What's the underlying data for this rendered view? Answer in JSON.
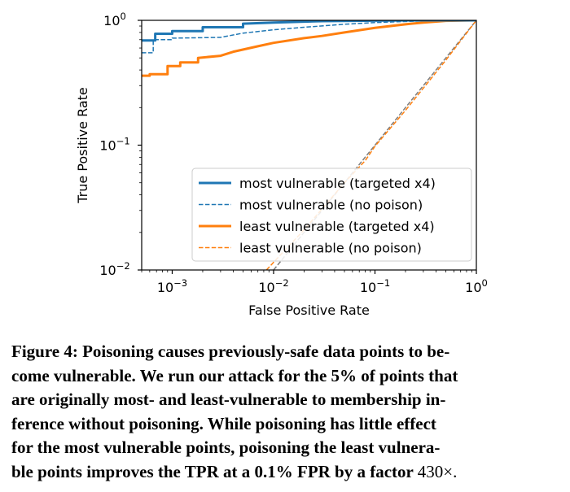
{
  "chart_data": {
    "type": "line",
    "xscale": "log",
    "yscale": "log",
    "xlim": [
      0.0005,
      1
    ],
    "ylim": [
      0.01,
      1
    ],
    "xlabel": "False Positive Rate",
    "ylabel": "True Positive Rate",
    "xticks": [
      {
        "value": 0.001,
        "base": "10",
        "exp": "−3"
      },
      {
        "value": 0.01,
        "base": "10",
        "exp": "−2"
      },
      {
        "value": 0.1,
        "base": "10",
        "exp": "−1"
      },
      {
        "value": 1,
        "base": "10",
        "exp": "0"
      }
    ],
    "yticks": [
      {
        "value": 0.01,
        "base": "10",
        "exp": "−2"
      },
      {
        "value": 0.1,
        "base": "10",
        "exp": "−1"
      },
      {
        "value": 1,
        "base": "10",
        "exp": "0"
      }
    ],
    "legend_position": "lower-right",
    "series": [
      {
        "name": "most vulnerable (targeted x4)",
        "color": "#1f77b4",
        "style": "solid",
        "points": [
          [
            0.0005,
            0.69
          ],
          [
            0.00068,
            0.69
          ],
          [
            0.00068,
            0.78
          ],
          [
            0.001,
            0.78
          ],
          [
            0.001,
            0.82
          ],
          [
            0.002,
            0.82
          ],
          [
            0.002,
            0.88
          ],
          [
            0.005,
            0.88
          ],
          [
            0.005,
            0.94
          ],
          [
            0.01,
            0.96
          ],
          [
            0.03,
            0.985
          ],
          [
            0.1,
            0.995
          ],
          [
            0.3,
            1.0
          ],
          [
            1,
            1.0
          ]
        ]
      },
      {
        "name": "most vulnerable (no poison)",
        "color": "#1f77b4",
        "style": "dashed",
        "points": [
          [
            0.0005,
            0.55
          ],
          [
            0.00065,
            0.55
          ],
          [
            0.00065,
            0.7
          ],
          [
            0.001,
            0.7
          ],
          [
            0.001,
            0.72
          ],
          [
            0.003,
            0.73
          ],
          [
            0.005,
            0.79
          ],
          [
            0.01,
            0.84
          ],
          [
            0.02,
            0.88
          ],
          [
            0.05,
            0.93
          ],
          [
            0.1,
            0.96
          ],
          [
            0.3,
            0.99
          ],
          [
            1,
            1.0
          ]
        ]
      },
      {
        "name": "least vulnerable (targeted x4)",
        "color": "#ff7f0e",
        "style": "solid",
        "points": [
          [
            0.0005,
            0.36
          ],
          [
            0.0006,
            0.36
          ],
          [
            0.0006,
            0.37
          ],
          [
            0.0009,
            0.37
          ],
          [
            0.0009,
            0.43
          ],
          [
            0.0012,
            0.43
          ],
          [
            0.0012,
            0.46
          ],
          [
            0.0018,
            0.46
          ],
          [
            0.0018,
            0.5
          ],
          [
            0.003,
            0.52
          ],
          [
            0.004,
            0.56
          ],
          [
            0.007,
            0.62
          ],
          [
            0.01,
            0.66
          ],
          [
            0.02,
            0.72
          ],
          [
            0.03,
            0.75
          ],
          [
            0.05,
            0.8
          ],
          [
            0.1,
            0.87
          ],
          [
            0.2,
            0.93
          ],
          [
            0.3,
            0.96
          ],
          [
            0.5,
            0.99
          ],
          [
            1,
            1.0
          ]
        ]
      },
      {
        "name": "least vulnerable (no poison)",
        "color": "#ff7f0e",
        "style": "dashed",
        "points": [
          [
            0.0085,
            0.01
          ],
          [
            0.012,
            0.0135
          ],
          [
            0.02,
            0.021
          ],
          [
            0.05,
            0.05
          ],
          [
            0.08,
            0.075
          ],
          [
            0.1,
            0.098
          ],
          [
            0.2,
            0.19
          ],
          [
            0.5,
            0.48
          ],
          [
            1,
            1.0
          ]
        ]
      },
      {
        "name": "chance",
        "color": "#7f7f7f",
        "style": "dashed",
        "in_legend": false,
        "points": [
          [
            0.01,
            0.01
          ],
          [
            1,
            1.0
          ]
        ]
      }
    ]
  },
  "caption": {
    "line1": "Figure 4: Poisoning causes previously-safe data points to be-",
    "line2": "come vulnerable. We run our attack for the 5% of points that",
    "line3": "are originally most- and least-vulnerable to membership in-",
    "line4": "ference without poisoning. While poisoning has little effect",
    "line5": "for the most vulnerable points, poisoning the least vulnera-",
    "line6_text": "ble points improves the TPR at a 0.1% FPR by a factor",
    "line6_factor": "430×."
  }
}
